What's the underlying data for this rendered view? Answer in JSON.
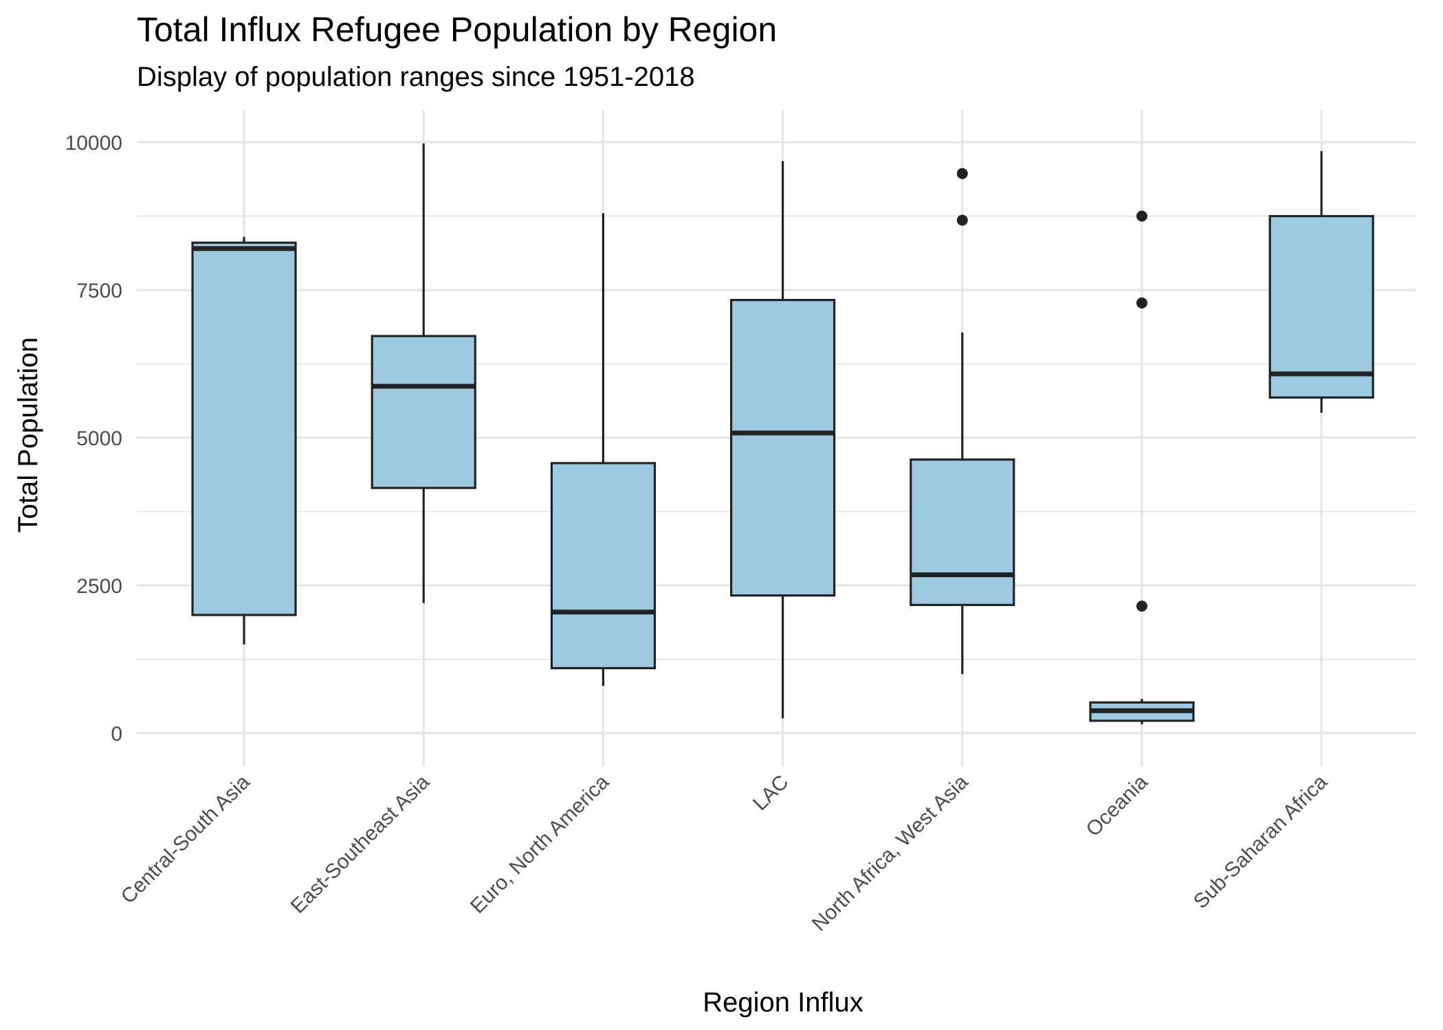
{
  "chart_data": {
    "type": "boxplot",
    "title": "Total Influx Refugee Population by Region",
    "subtitle": "Display of population ranges since 1951-2018",
    "xlabel": "Region Influx",
    "ylabel": "Total Population",
    "ylim": [
      -450,
      10500
    ],
    "yticks": [
      0,
      2500,
      5000,
      7500,
      10000
    ],
    "ytick_labels": [
      "0",
      "2500",
      "5000",
      "7500",
      "10000"
    ],
    "grid": true,
    "legend": "none",
    "colors": {
      "box_fill": "#9ecae1",
      "box_stroke": "#222222",
      "grid": "#e5e5e5",
      "text": "#4d4d4d"
    },
    "categories": [
      "Central-South Asia",
      "East-Southeast Asia",
      "Euro, North America",
      "LAC",
      "North Africa, West Asia",
      "Oceania",
      "Sub-Saharan Africa"
    ],
    "boxes": [
      {
        "category": "Central-South Asia",
        "whisker_low": 1500,
        "q1": 2000,
        "median": 8200,
        "q3": 8300,
        "whisker_high": 8400,
        "outliers": []
      },
      {
        "category": "East-Southeast Asia",
        "whisker_low": 2200,
        "q1": 4150,
        "median": 5870,
        "q3": 6720,
        "whisker_high": 9980,
        "outliers": []
      },
      {
        "category": "Euro, North America",
        "whisker_low": 800,
        "q1": 1100,
        "median": 2050,
        "q3": 4570,
        "whisker_high": 8800,
        "outliers": []
      },
      {
        "category": "LAC",
        "whisker_low": 250,
        "q1": 2330,
        "median": 5080,
        "q3": 7330,
        "whisker_high": 9680,
        "outliers": []
      },
      {
        "category": "North Africa, West Asia",
        "whisker_low": 1000,
        "q1": 2170,
        "median": 2680,
        "q3": 4630,
        "whisker_high": 6780,
        "outliers": [
          8680,
          9470
        ]
      },
      {
        "category": "Oceania",
        "whisker_low": 150,
        "q1": 210,
        "median": 380,
        "q3": 520,
        "whisker_high": 580,
        "outliers": [
          2150,
          7280,
          8750
        ]
      },
      {
        "category": "Sub-Saharan Africa",
        "whisker_low": 5420,
        "q1": 5680,
        "median": 6080,
        "q3": 8750,
        "whisker_high": 9850,
        "outliers": []
      }
    ]
  }
}
